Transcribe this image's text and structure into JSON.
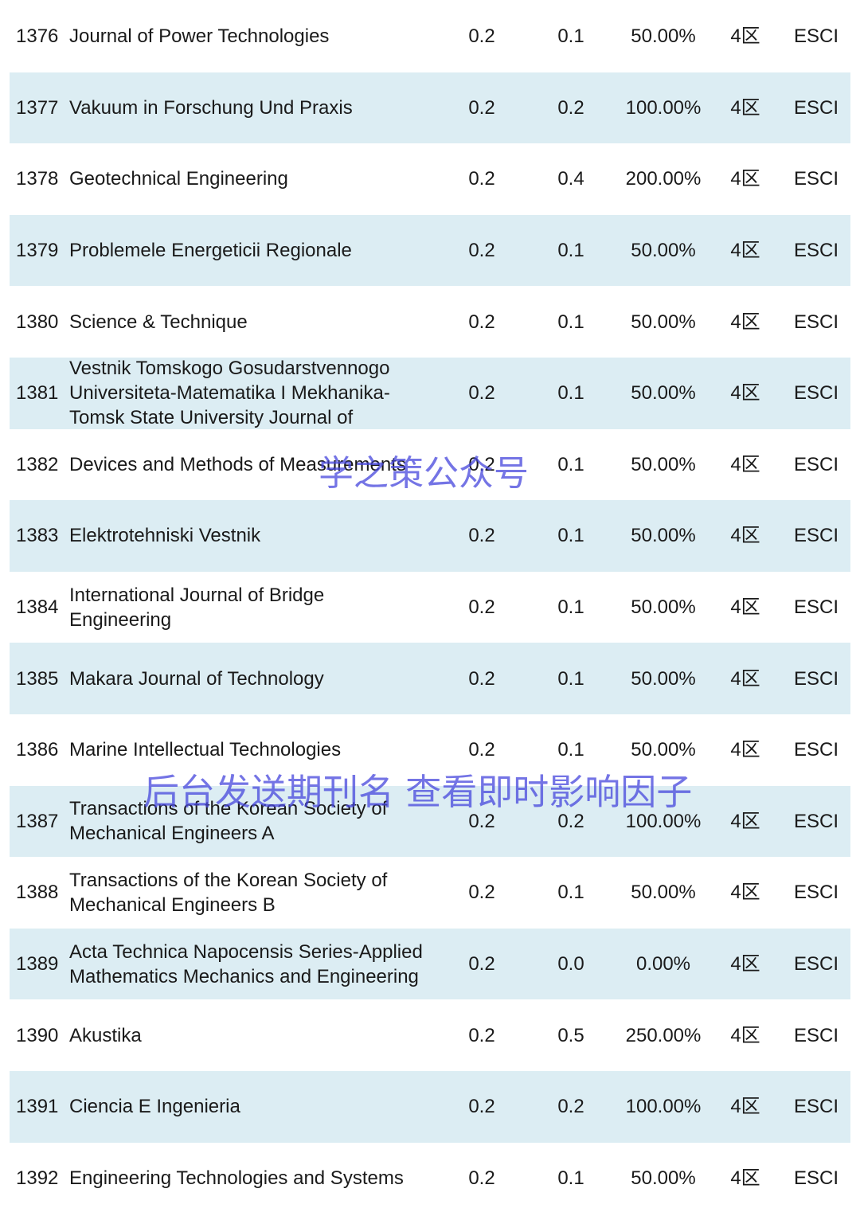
{
  "table": {
    "rows": [
      [
        "1376",
        "Journal of Power Technologies",
        "0.2",
        "0.1",
        "50.00%",
        "4区",
        "ESCI"
      ],
      [
        "1377",
        "Vakuum in Forschung Und Praxis",
        "0.2",
        "0.2",
        "100.00%",
        "4区",
        "ESCI"
      ],
      [
        "1378",
        "Geotechnical Engineering",
        "0.2",
        "0.4",
        "200.00%",
        "4区",
        "ESCI"
      ],
      [
        "1379",
        "Problemele Energeticii Regionale",
        "0.2",
        "0.1",
        "50.00%",
        "4区",
        "ESCI"
      ],
      [
        "1380",
        "Science & Technique",
        "0.2",
        "0.1",
        "50.00%",
        "4区",
        "ESCI"
      ],
      [
        "1381",
        "Vestnik Tomskogo Gosudarstvennogo Universiteta-Matematika I Mekhanika-Tomsk State University Journal of",
        "0.2",
        "0.1",
        "50.00%",
        "4区",
        "ESCI"
      ],
      [
        "1382",
        "Devices and Methods of Measurements",
        "0.2",
        "0.1",
        "50.00%",
        "4区",
        "ESCI"
      ],
      [
        "1383",
        "Elektrotehniski Vestnik",
        "0.2",
        "0.1",
        "50.00%",
        "4区",
        "ESCI"
      ],
      [
        "1384",
        "International Journal of Bridge Engineering",
        "0.2",
        "0.1",
        "50.00%",
        "4区",
        "ESCI"
      ],
      [
        "1385",
        "Makara Journal of Technology",
        "0.2",
        "0.1",
        "50.00%",
        "4区",
        "ESCI"
      ],
      [
        "1386",
        "Marine Intellectual Technologies",
        "0.2",
        "0.1",
        "50.00%",
        "4区",
        "ESCI"
      ],
      [
        "1387",
        "Transactions of the Korean Society of Mechanical Engineers A",
        "0.2",
        "0.2",
        "100.00%",
        "4区",
        "ESCI"
      ],
      [
        "1388",
        "Transactions of the Korean Society of Mechanical Engineers B",
        "0.2",
        "0.1",
        "50.00%",
        "4区",
        "ESCI"
      ],
      [
        "1389",
        "Acta Technica Napocensis Series-Applied Mathematics Mechanics and Engineering",
        "0.2",
        "0.0",
        "0.00%",
        "4区",
        "ESCI"
      ],
      [
        "1390",
        "Akustika",
        "0.2",
        "0.5",
        "250.00%",
        "4区",
        "ESCI"
      ],
      [
        "1391",
        "Ciencia E Ingenieria",
        "0.2",
        "0.2",
        "100.00%",
        "4区",
        "ESCI"
      ],
      [
        "1392",
        "Engineering Technologies and Systems",
        "0.2",
        "0.1",
        "50.00%",
        "4区",
        "ESCI"
      ]
    ]
  },
  "watermarks": [
    "学之策公众号",
    "后台发送期刊名 查看即时影响因子"
  ]
}
